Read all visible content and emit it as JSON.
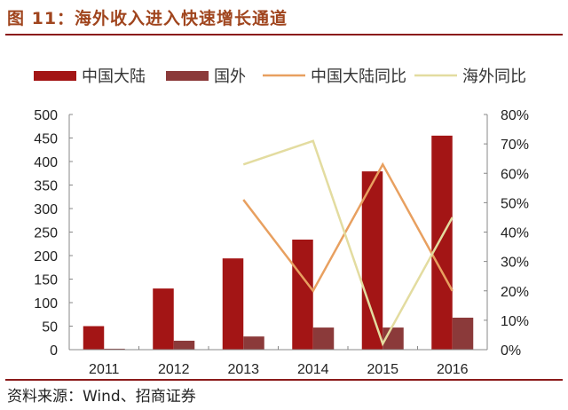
{
  "title": "图 11：海外收入进入快速增长通道",
  "source": "资料来源：Wind、招商证券",
  "colors": {
    "mainland_bar": "#A31515",
    "overseas_bar": "#8B3A3A",
    "mainland_yoy": "#E8A060",
    "overseas_yoy": "#E3DCA0",
    "title": "#A0451E",
    "rule": "#8B1A1A"
  },
  "legend": [
    {
      "label": "中国大陆",
      "type": "bar"
    },
    {
      "label": "国外",
      "type": "bar"
    },
    {
      "label": "中国大陆同比",
      "type": "line"
    },
    {
      "label": "海外同比",
      "type": "line"
    }
  ],
  "chart_data": {
    "type": "bar",
    "title": "海外收入进入快速增长通道",
    "categories": [
      "2011",
      "2012",
      "2013",
      "2014",
      "2015",
      "2016"
    ],
    "series": [
      {
        "name": "中国大陆",
        "type": "bar",
        "axis": "left",
        "values": [
          50,
          130,
          194,
          234,
          379,
          455
        ]
      },
      {
        "name": "国外",
        "type": "bar",
        "axis": "left",
        "values": [
          2,
          19,
          28,
          47,
          47,
          68
        ]
      },
      {
        "name": "中国大陆同比",
        "type": "line",
        "axis": "right",
        "values": [
          null,
          null,
          0.51,
          0.2,
          0.63,
          0.2
        ]
      },
      {
        "name": "海外同比",
        "type": "line",
        "axis": "right",
        "values": [
          null,
          null,
          0.63,
          0.71,
          0.02,
          0.45
        ]
      }
    ],
    "left_axis": {
      "ylim": [
        0,
        500
      ],
      "ticks": [
        "0",
        "50",
        "100",
        "150",
        "200",
        "250",
        "300",
        "350",
        "400",
        "450",
        "500"
      ]
    },
    "right_axis": {
      "ylim": [
        0,
        0.8
      ],
      "ticks": [
        "0%",
        "10%",
        "20%",
        "30%",
        "40%",
        "50%",
        "60%",
        "70%",
        "80%"
      ]
    },
    "xlabel": "",
    "ylabel": "",
    "grid": false,
    "legend_position": "top"
  }
}
